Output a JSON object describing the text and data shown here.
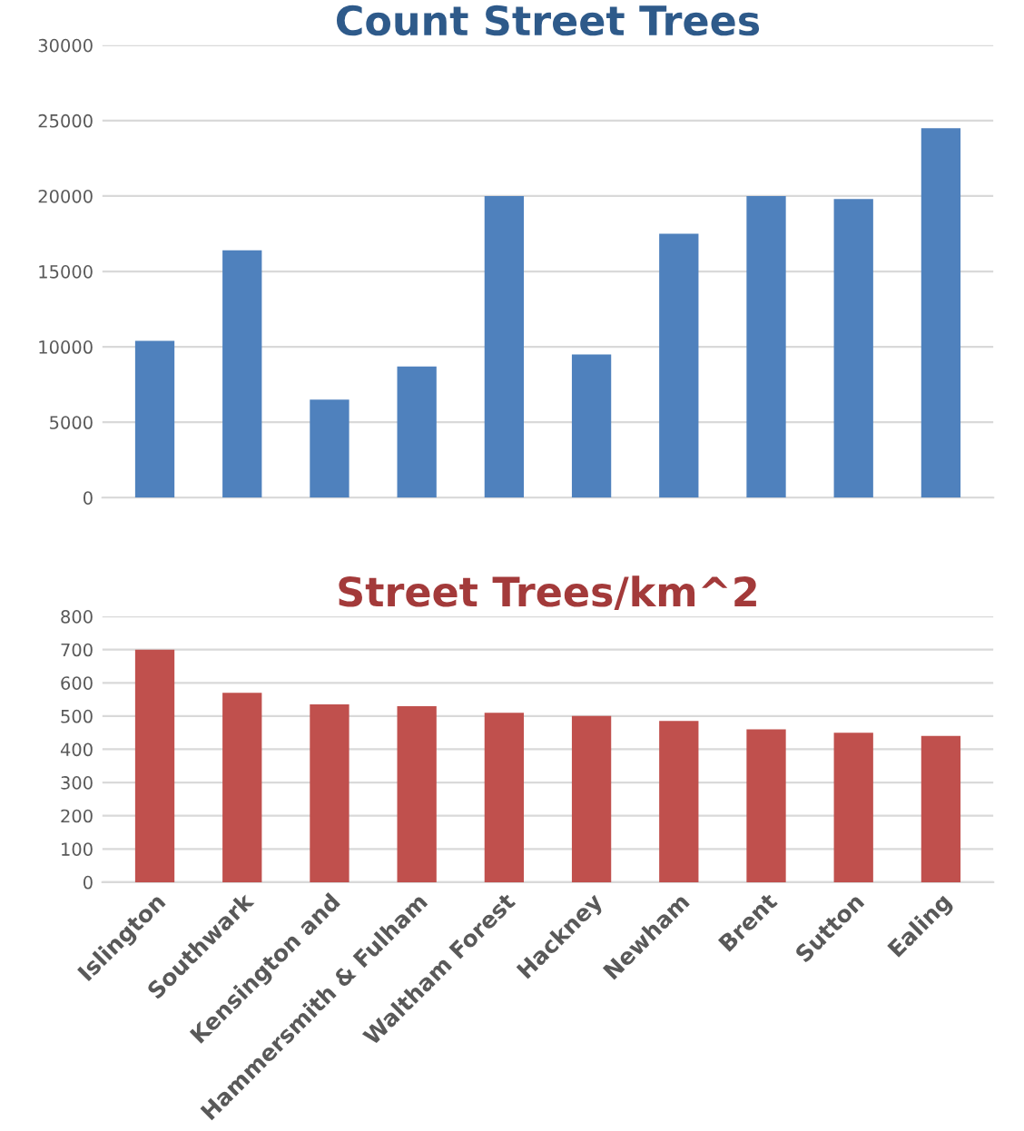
{
  "chart_data": [
    {
      "type": "bar",
      "title": "Count Street Trees",
      "categories": [
        null,
        null,
        null,
        null,
        null,
        null,
        null,
        null,
        null,
        null
      ],
      "values": [
        10400,
        16400,
        6500,
        8700,
        20000,
        9500,
        17500,
        20000,
        19800,
        24500
      ],
      "color": "#4f81bd",
      "ylim": [
        0,
        30000
      ],
      "yticks": [
        0,
        5000,
        10000,
        15000,
        20000,
        25000,
        30000
      ],
      "grid": "y"
    },
    {
      "type": "bar",
      "title": "Street Trees/km^2",
      "categories": [
        "Islington",
        "Southwark",
        "Kensington and",
        "Hammersmith & Fulham",
        "Waltham Forest",
        "Hackney",
        "Newham",
        "Brent",
        "Sutton",
        "Ealing"
      ],
      "values": [
        700,
        570,
        535,
        530,
        510,
        500,
        485,
        460,
        450,
        440
      ],
      "color": "#c0504d",
      "ylim": [
        0,
        800
      ],
      "yticks": [
        0,
        100,
        200,
        300,
        400,
        500,
        600,
        700,
        800
      ],
      "grid": "y"
    }
  ]
}
